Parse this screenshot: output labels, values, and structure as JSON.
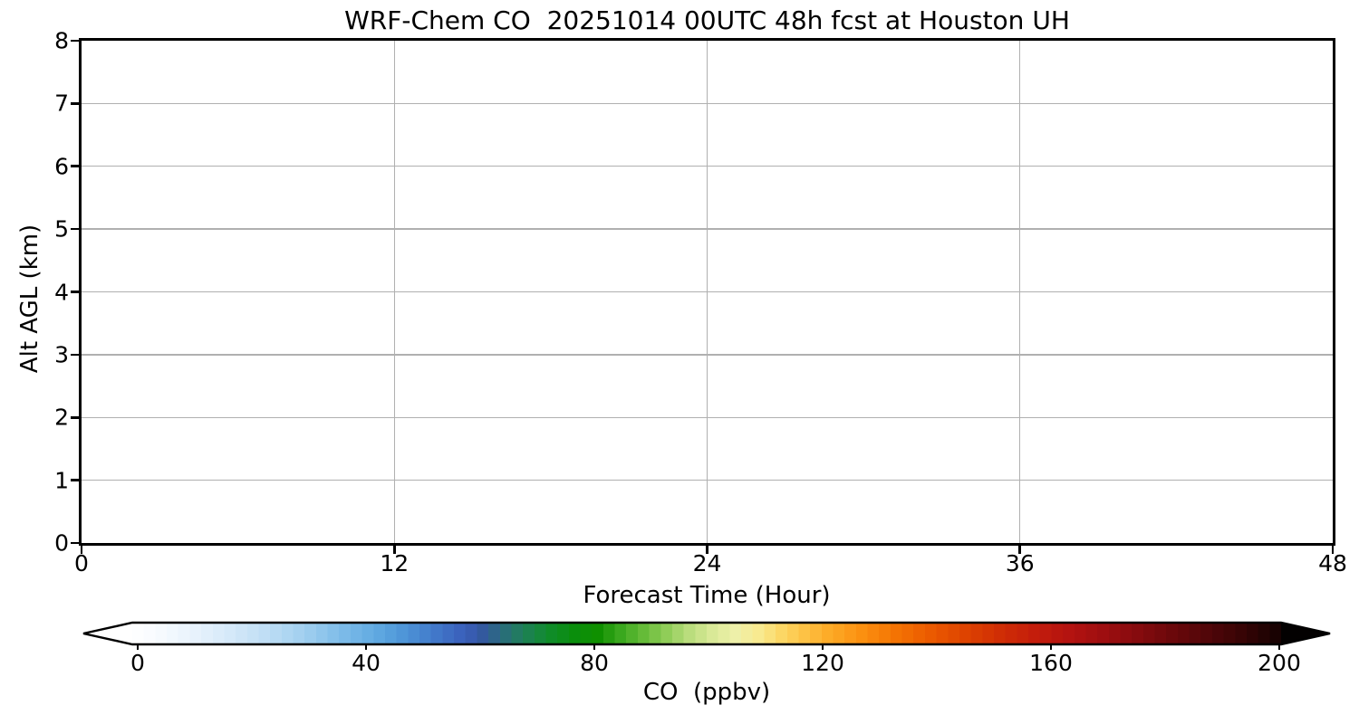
{
  "figure": {
    "background_color": "#ffffff",
    "spine_color": "#000000",
    "text_color": "#000000"
  },
  "chart_data": {
    "type": "heatmap",
    "title": "WRF-Chem CO  20251014 00UTC 48h fcst at Houston UH",
    "xlabel": "Forecast Time (Hour)",
    "ylabel": "Alt AGL (km)",
    "xlim": [
      0,
      48
    ],
    "ylim": [
      0,
      8
    ],
    "x_ticks": [
      0,
      12,
      24,
      36,
      48
    ],
    "y_ticks": [
      0,
      1,
      2,
      3,
      4,
      5,
      6,
      7,
      8
    ],
    "grid": true,
    "grid_color": "#b0b0b0",
    "values": [],
    "note": "Plot area is blank/white: no CO field is rendered in the axes",
    "colorbar": {
      "label": "CO  (ppbv)",
      "ticks": [
        0,
        40,
        80,
        120,
        160,
        200
      ],
      "range": [
        0,
        200
      ],
      "orientation": "horizontal",
      "extend": "both",
      "under_color": "#ffffff",
      "over_color": "#030101",
      "n_bands": 100,
      "stops": [
        [
          0,
          "#ffffff"
        ],
        [
          6,
          "#f4f9fe"
        ],
        [
          12,
          "#e4f1fb"
        ],
        [
          18,
          "#d2e7f8"
        ],
        [
          24,
          "#bcdcf4"
        ],
        [
          30,
          "#a0cfef"
        ],
        [
          36,
          "#80bde9"
        ],
        [
          42,
          "#62abe2"
        ],
        [
          46,
          "#529bda"
        ],
        [
          50,
          "#4787d0"
        ],
        [
          54,
          "#3f72c6"
        ],
        [
          58,
          "#3a5eba"
        ],
        [
          61,
          "#33599e"
        ],
        [
          64,
          "#2b6a80"
        ],
        [
          67,
          "#227a62"
        ],
        [
          70,
          "#188644"
        ],
        [
          73,
          "#0f8c27"
        ],
        [
          77,
          "#0a8e0c"
        ],
        [
          81,
          "#0f9000"
        ],
        [
          85,
          "#3aa81e"
        ],
        [
          89,
          "#65bb38"
        ],
        [
          93,
          "#90cd58"
        ],
        [
          97,
          "#badd7d"
        ],
        [
          101,
          "#d9e997"
        ],
        [
          105,
          "#eef0a9"
        ],
        [
          109,
          "#f8ea90"
        ],
        [
          113,
          "#fcd765"
        ],
        [
          117,
          "#fdc245"
        ],
        [
          121,
          "#fdac28"
        ],
        [
          127,
          "#fb9010"
        ],
        [
          133,
          "#f47303"
        ],
        [
          139,
          "#eb5a00"
        ],
        [
          145,
          "#de4300"
        ],
        [
          151,
          "#d02e05"
        ],
        [
          157,
          "#c41d0b"
        ],
        [
          163,
          "#b41310"
        ],
        [
          169,
          "#9e0e10"
        ],
        [
          175,
          "#860b0e"
        ],
        [
          181,
          "#6b080b"
        ],
        [
          187,
          "#520609"
        ],
        [
          193,
          "#380405"
        ],
        [
          200,
          "#140202"
        ]
      ]
    }
  }
}
